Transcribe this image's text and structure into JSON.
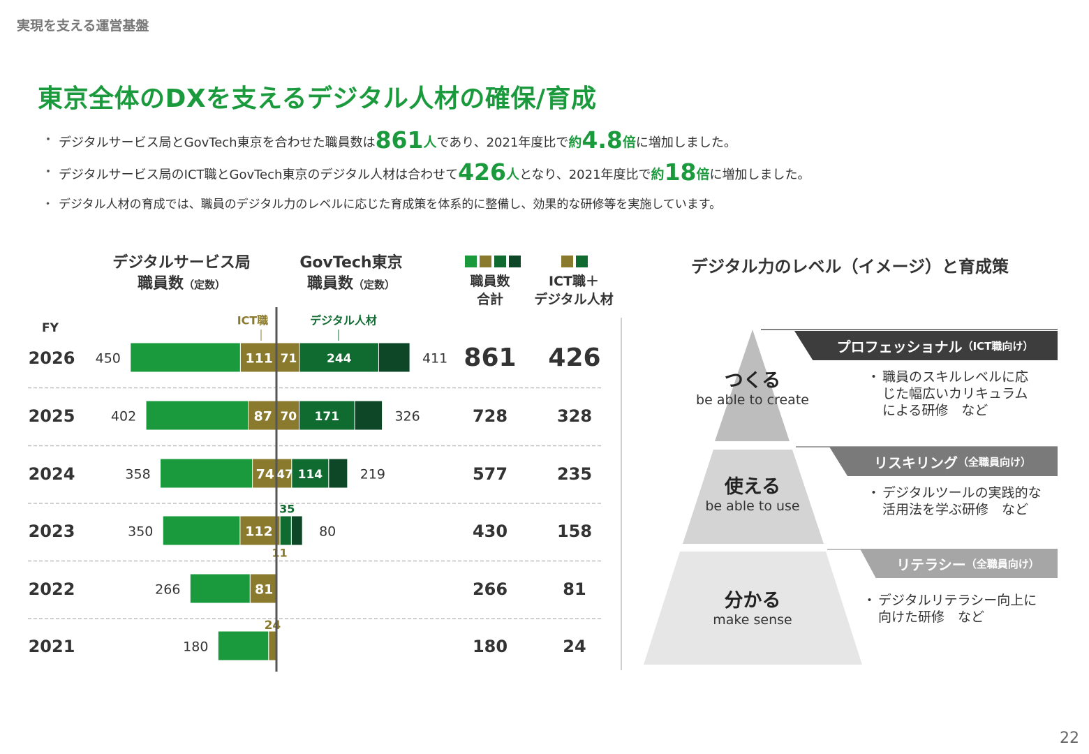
{
  "section_label": "実現を支える運営基盤",
  "title": "東京全体のDXを支えるデジタル人材の確保/育成",
  "bullets": {
    "b1": {
      "pre": "デジタルサービス局とGovTech東京を合わせた職員数は",
      "n": "861",
      "u": "人",
      "mid": "であり、2021年度比で",
      "yaku": "約",
      "m": "4.8",
      "bai": "倍",
      "post": "に増加しました。"
    },
    "b2": {
      "pre": "デジタルサービス局のICT職とGovTech東京のデジタル人材は合わせて",
      "n": "426",
      "u": "人",
      "mid": "となり、2021年度比で",
      "yaku": "約",
      "m": "18",
      "bai": "倍",
      "post": "に増加しました。"
    },
    "b3": "デジタル人材の育成では、職員のデジタル力のレベルに応じた育成策を体系的に整備し、効果的な研修等を実施しています。"
  },
  "chart_data": {
    "type": "bar",
    "title_left": "デジタルサービス局",
    "title_left2": "職員数",
    "title_right": "GovTech東京",
    "title_right2": "職員数",
    "subtitle_unit": "（定数）",
    "x_axis_label": "FY",
    "segment_label_ict": "ICT職",
    "segment_label_digital": "デジタル人材",
    "col_total_1": "職員数",
    "col_total_2": "合計",
    "col_ict_1": "ICT職＋",
    "col_ict_2": "デジタル人材",
    "categories": [
      "2026",
      "2025",
      "2024",
      "2023",
      "2022",
      "2021"
    ],
    "series": [
      {
        "name": "デジタルサービス局 職員数",
        "values": [
          450,
          402,
          358,
          350,
          266,
          180
        ]
      },
      {
        "name": "デジタルサービス局 ICT職",
        "values": [
          111,
          87,
          74,
          112,
          81,
          24
        ]
      },
      {
        "name": "GovTech東京 職員数",
        "values": [
          411,
          326,
          219,
          80,
          null,
          null
        ]
      },
      {
        "name": "GovTech東京 ICT職相当",
        "values": [
          71,
          70,
          47,
          11,
          null,
          null
        ]
      },
      {
        "name": "GovTech東京 デジタル人材",
        "values": [
          244,
          171,
          114,
          35,
          null,
          null
        ]
      },
      {
        "name": "職員数 合計",
        "values": [
          861,
          728,
          577,
          430,
          266,
          180
        ]
      },
      {
        "name": "ICT職＋デジタル人材",
        "values": [
          426,
          328,
          235,
          158,
          81,
          24
        ]
      }
    ],
    "colors": {
      "bright": "#1a9a3c",
      "olive": "#8a7a2e",
      "dark": "#0f6b30",
      "darkest": "#0d4728"
    }
  },
  "pyramid": {
    "title": "デジタル力のレベル（イメージ）と育成策",
    "levels": [
      {
        "main": "つくる",
        "sub": "be able to create",
        "band": "プロフェッショナル",
        "band_note": "（ICT職向け）",
        "desc": [
          "職員のスキルレベルに応",
          "じた幅広いカリキュラム",
          "による研修　など"
        ]
      },
      {
        "main": "使える",
        "sub": "be able to use",
        "band": "リスキリング",
        "band_note": "（全職員向け）",
        "desc": [
          "デジタルツールの実践的な",
          "活用法を学ぶ研修　など"
        ]
      },
      {
        "main": "分かる",
        "sub": "make sense",
        "band": "リテラシー",
        "band_note": "（全職員向け）",
        "desc": [
          "デジタルリテラシー向上に",
          "向けた研修　など"
        ]
      }
    ]
  },
  "page_number": "22"
}
